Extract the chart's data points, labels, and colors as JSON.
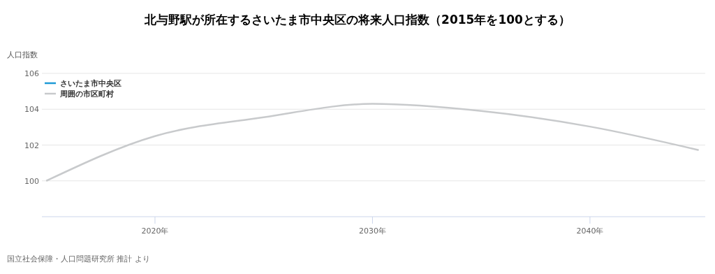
{
  "chart_data": {
    "type": "line",
    "title": "北与野駅が所在するさいたま市中央区の将来人口指数（2015年を100とする）",
    "ylabel": "人口指数",
    "x": [
      2015,
      2020,
      2025,
      2030,
      2035,
      2040,
      2045
    ],
    "series": [
      {
        "name": "さいたま市中央区",
        "color": "#1f9ad6",
        "values": [
          null,
          null,
          null,
          null,
          null,
          null,
          null
        ]
      },
      {
        "name": "周囲の市区町村",
        "color": "#c8cacc",
        "values": [
          100,
          102.5,
          103.55,
          104.3,
          103.9,
          103.03,
          101.72
        ]
      }
    ],
    "xlim": [
      2014.8,
      2045.3
    ],
    "xticks": [
      {
        "value": 2020,
        "label": "2020年"
      },
      {
        "value": 2030,
        "label": "2030年"
      },
      {
        "value": 2040,
        "label": "2040年"
      }
    ],
    "ylim": [
      98,
      106
    ],
    "yticks": [
      100,
      102,
      104,
      106
    ],
    "grid": "y",
    "legend": "top left",
    "marker": "none",
    "line_style": "solid",
    "annotations": [
      "国立社会保障・人口問題研究所 推計 より"
    ]
  }
}
